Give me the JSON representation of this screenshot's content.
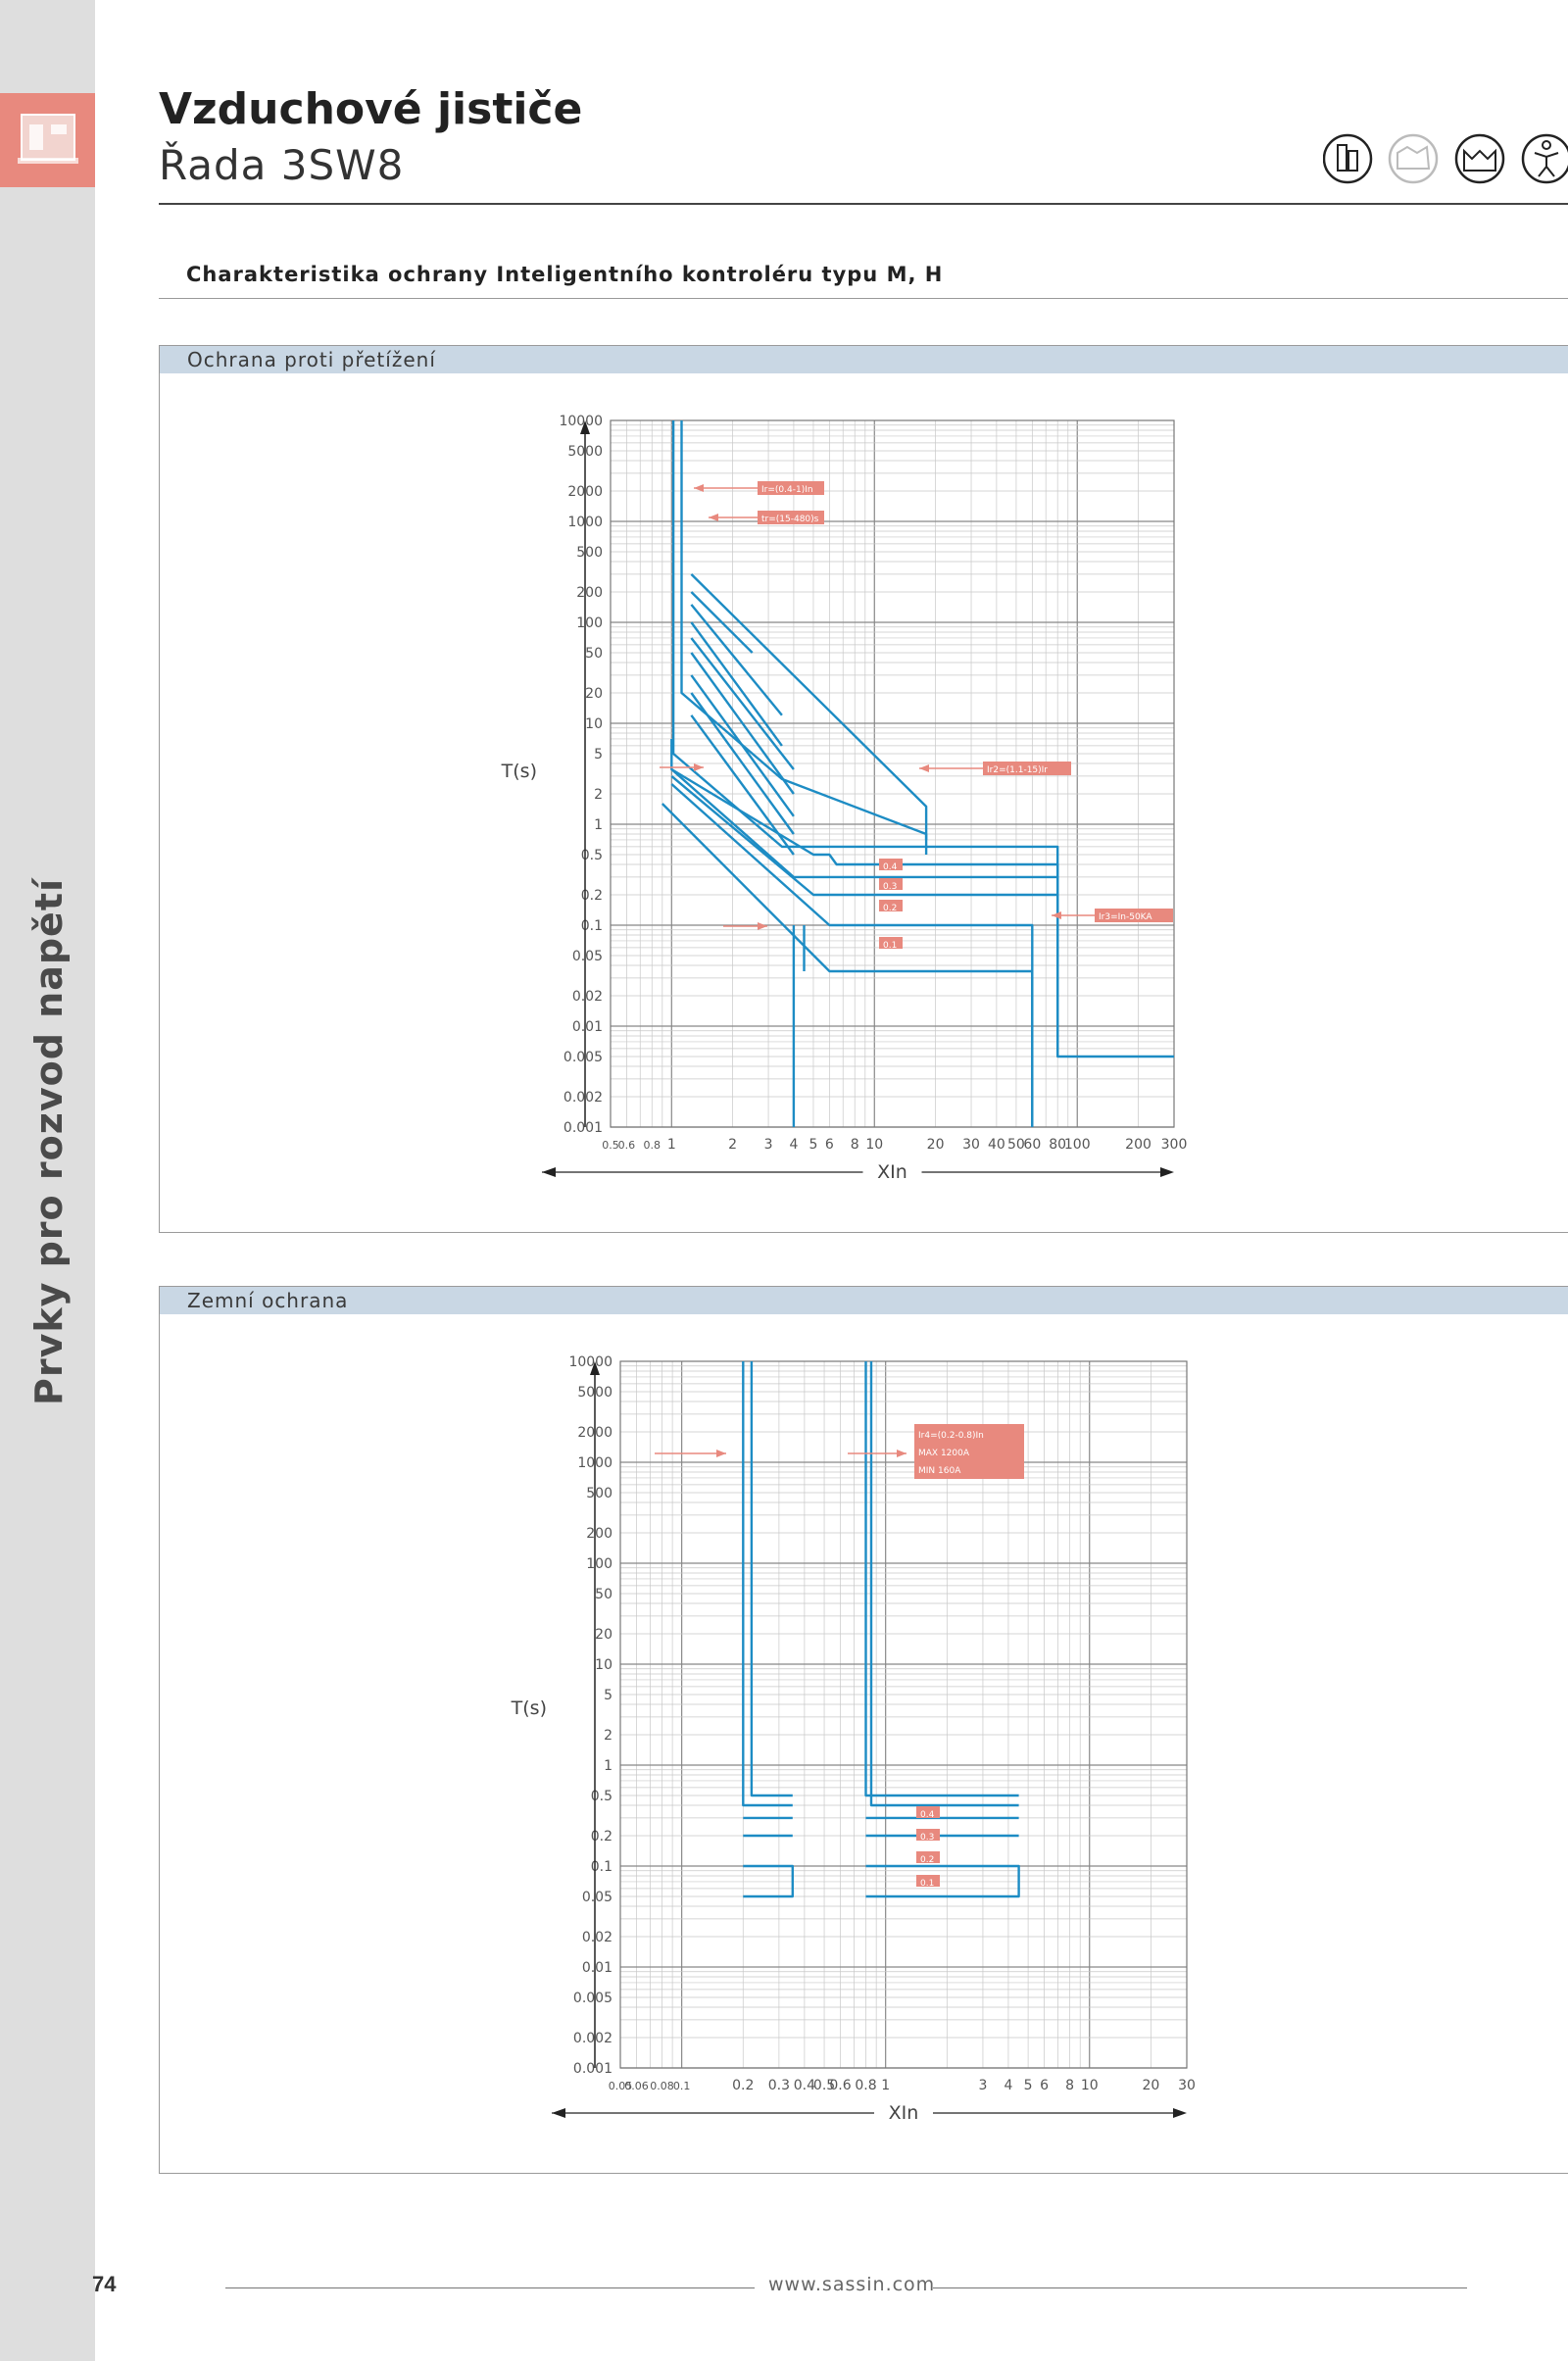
{
  "header": {
    "title": "Vzduchové jističe",
    "subtitle": "Řada 3SW8"
  },
  "sidebar": {
    "vertical_title": "Prvky pro rozvod napětí"
  },
  "section": {
    "heading": "Charakteristika ochrany Inteligentního kontroléru typu M, H"
  },
  "header_icons": [
    "building-icon",
    "factory-icon",
    "factory-roof-icon",
    "person-icon"
  ],
  "colors": {
    "curve": "#1d8cc4",
    "annotation": "#e8897e",
    "sidebar": "#dedede",
    "sidebar_tab": "#e8897e",
    "panel_bar": "#c9d7e4"
  },
  "panels": [
    {
      "label": "Ochrana proti přetížení",
      "chart_data": {
        "type": "line",
        "xscale": "log",
        "yscale": "log",
        "xlabel": "XIn",
        "ylabel": "T(s)",
        "xlim": [
          0.5,
          300
        ],
        "ylim": [
          0.001,
          10000
        ],
        "x_ticks": [
          "0.5",
          "0.6",
          "0.8",
          "1",
          "2",
          "3",
          "4",
          "5",
          "6",
          "8",
          "10",
          "20",
          "30",
          "40",
          "50",
          "60",
          "80",
          "100",
          "200",
          "300"
        ],
        "y_ticks": [
          "10000",
          "5000",
          "2000",
          "1000",
          "500",
          "200",
          "100",
          "50",
          "20",
          "10",
          "5",
          "2",
          "1",
          "0.5",
          "0.2",
          "0.1",
          "0.05",
          "0.02",
          "0.01",
          "0.005",
          "0.002",
          "0.001"
        ],
        "annotations": [
          "Ir=(0.4-1)In",
          "tr=(15-480)s",
          "Ir2=(1.1-15)Ir",
          "Ir3=In-50KA",
          "0.4",
          "0.3",
          "0.2",
          "0.1"
        ],
        "grid": true,
        "series": [
          {
            "points": [
              [
                1.02,
                10000
              ],
              [
                1.02,
                5
              ],
              [
                3.5,
                0.6
              ],
              [
                80,
                0.6
              ],
              [
                80,
                0.005
              ],
              [
                300,
                0.005
              ]
            ]
          },
          {
            "points": [
              [
                1.12,
                10000
              ],
              [
                1.12,
                20
              ],
              [
                3.5,
                2.8
              ],
              [
                18,
                0.8
              ],
              [
                18,
                0.5
              ]
            ]
          },
          {
            "points": [
              [
                1.25,
                300
              ],
              [
                18,
                1.5
              ],
              [
                18,
                0.7
              ]
            ]
          },
          {
            "points": [
              [
                1.25,
                200
              ],
              [
                2.5,
                50
              ]
            ]
          },
          {
            "points": [
              [
                1.25,
                150
              ],
              [
                3.5,
                12
              ]
            ]
          },
          {
            "points": [
              [
                1.25,
                100
              ],
              [
                3.5,
                6
              ]
            ]
          },
          {
            "points": [
              [
                1.25,
                70
              ],
              [
                4,
                3.5
              ]
            ]
          },
          {
            "points": [
              [
                1.25,
                50
              ],
              [
                4,
                2
              ]
            ]
          },
          {
            "points": [
              [
                1.25,
                30
              ],
              [
                4,
                1.2
              ]
            ]
          },
          {
            "points": [
              [
                1.25,
                20
              ],
              [
                4,
                0.8
              ]
            ]
          },
          {
            "points": [
              [
                1.25,
                12
              ],
              [
                4,
                0.5
              ]
            ]
          },
          {
            "points": [
              [
                1.0,
                7
              ],
              [
                1.0,
                3.5
              ],
              [
                5,
                0.5
              ],
              [
                6,
                0.5
              ],
              [
                6.5,
                0.4
              ],
              [
                80,
                0.4
              ],
              [
                80,
                0.005
              ]
            ]
          },
          {
            "points": [
              [
                1.0,
                3.5
              ],
              [
                4,
                0.3
              ],
              [
                80,
                0.3
              ],
              [
                80,
                0.005
              ]
            ]
          },
          {
            "points": [
              [
                1.0,
                3.0
              ],
              [
                5,
                0.2
              ],
              [
                80,
                0.2
              ],
              [
                80,
                0.005
              ]
            ]
          },
          {
            "points": [
              [
                1.0,
                2.5
              ],
              [
                6,
                0.1
              ],
              [
                60,
                0.1
              ],
              [
                60,
                0.001
              ]
            ]
          },
          {
            "points": [
              [
                0.9,
                1.6
              ],
              [
                6,
                0.035
              ],
              [
                60,
                0.035
              ],
              [
                60,
                0.001
              ]
            ]
          },
          {
            "points": [
              [
                4,
                0.1
              ],
              [
                4,
                0.001
              ]
            ]
          },
          {
            "points": [
              [
                4.5,
                0.1
              ],
              [
                4.5,
                0.035
              ]
            ]
          }
        ]
      }
    },
    {
      "label": "Zemní ochrana",
      "chart_data": {
        "type": "line",
        "xscale": "log",
        "yscale": "log",
        "xlabel": "XIn",
        "ylabel": "T(s)",
        "xlim": [
          0.05,
          30
        ],
        "ylim": [
          0.001,
          10000
        ],
        "x_ticks": [
          "0.05",
          "0.06",
          "0.08",
          "0.1",
          "0.2",
          "0.3",
          "0.4",
          "0.5",
          "0.6",
          "0.8",
          "1",
          "3",
          "4",
          "5",
          "6",
          "8",
          "10",
          "20",
          "30"
        ],
        "y_ticks": [
          "10000",
          "5000",
          "2000",
          "1000",
          "500",
          "200",
          "100",
          "50",
          "20",
          "10",
          "5",
          "2",
          "1",
          "0.5",
          "0.2",
          "0.1",
          "0.05",
          "0.02",
          "0.01",
          "0.005",
          "0.002",
          "0.001"
        ],
        "annotations": [
          "Ir4=(0.2-0.8)In",
          "MAX 1200A",
          "MIN 160A",
          "0.4",
          "0.3",
          "0.2",
          "0.1"
        ],
        "grid": true,
        "series": [
          {
            "points": [
              [
                0.2,
                10000
              ],
              [
                0.2,
                0.4
              ],
              [
                0.35,
                0.4
              ]
            ]
          },
          {
            "points": [
              [
                0.22,
                10000
              ],
              [
                0.22,
                0.5
              ],
              [
                0.35,
                0.5
              ]
            ]
          },
          {
            "points": [
              [
                0.2,
                0.3
              ],
              [
                0.35,
                0.3
              ]
            ]
          },
          {
            "points": [
              [
                0.2,
                0.2
              ],
              [
                0.35,
                0.2
              ]
            ]
          },
          {
            "points": [
              [
                0.2,
                0.1
              ],
              [
                0.35,
                0.1
              ],
              [
                0.35,
                0.05
              ],
              [
                0.2,
                0.05
              ]
            ]
          },
          {
            "points": [
              [
                0.8,
                10000
              ],
              [
                0.8,
                0.5
              ],
              [
                4.5,
                0.5
              ]
            ]
          },
          {
            "points": [
              [
                0.85,
                10000
              ],
              [
                0.85,
                0.4
              ],
              [
                4.5,
                0.4
              ]
            ]
          },
          {
            "points": [
              [
                0.8,
                0.3
              ],
              [
                4.5,
                0.3
              ]
            ]
          },
          {
            "points": [
              [
                0.8,
                0.2
              ],
              [
                4.5,
                0.2
              ]
            ]
          },
          {
            "points": [
              [
                0.8,
                0.1
              ],
              [
                4.5,
                0.1
              ],
              [
                4.5,
                0.05
              ],
              [
                0.8,
                0.05
              ]
            ]
          }
        ]
      }
    }
  ],
  "footer": {
    "page_number": "74",
    "url": "www.sassin.com"
  }
}
